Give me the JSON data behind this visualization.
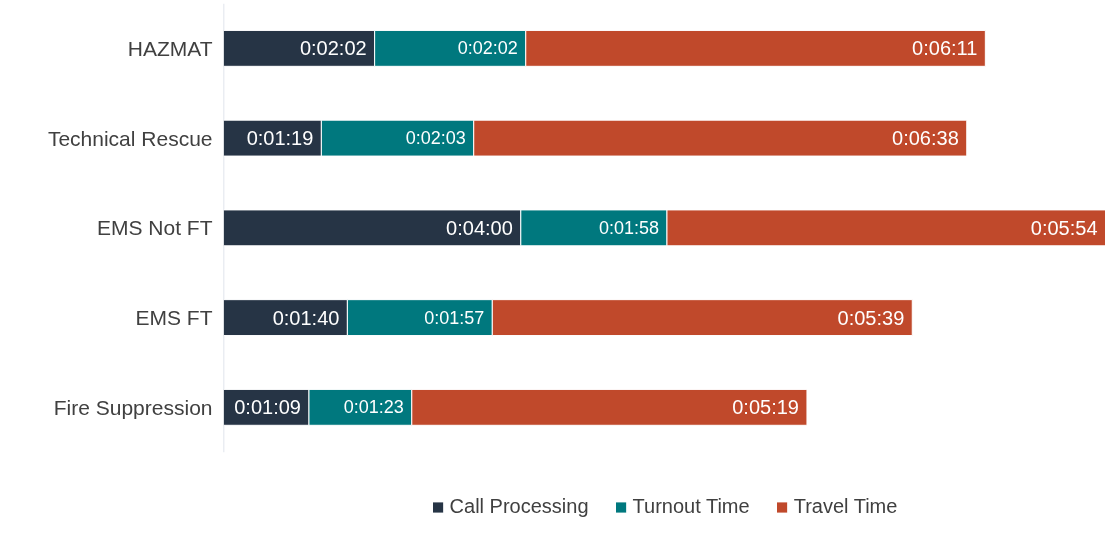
{
  "chart_data": {
    "type": "bar",
    "orientation": "horizontal",
    "stacked": true,
    "categories": [
      "HAZMAT",
      "Technical Rescue",
      "EMS Not FT",
      "EMS FT",
      "Fire Suppression"
    ],
    "series": [
      {
        "name": "Call Processing",
        "color": "#263445",
        "values": [
          122,
          79,
          240,
          100,
          69
        ],
        "value_labels": [
          "0:02:02",
          "0:01:19",
          "0:04:00",
          "0:01:40",
          "0:01:09"
        ]
      },
      {
        "name": "Turnout Time",
        "color": "#00787e",
        "values": [
          122,
          123,
          118,
          117,
          83
        ],
        "value_labels": [
          "0:02:02",
          "0:02:03",
          "0:01:58",
          "0:01:57",
          "0:01:23"
        ]
      },
      {
        "name": "Travel Time",
        "color": "#c0492b",
        "values": [
          371,
          398,
          354,
          339,
          319
        ],
        "value_labels": [
          "0:06:11",
          "0:06:38",
          "0:05:54",
          "0:05:39",
          "0:05:19"
        ]
      }
    ],
    "legend": "bottom",
    "grid": false
  }
}
